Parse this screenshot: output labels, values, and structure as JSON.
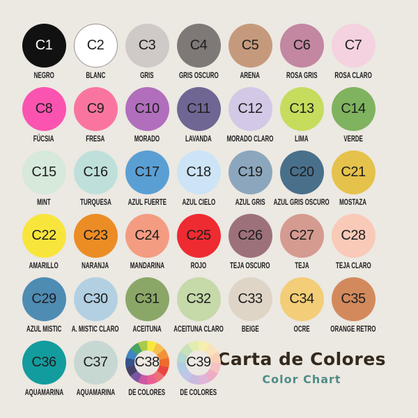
{
  "page": {
    "background": "#ece8e2"
  },
  "title": {
    "main": "Carta de Colores",
    "subtitle": "Color Chart",
    "main_color": "#33291c",
    "subtitle_color": "#4f8d88"
  },
  "chart_data": {
    "type": "table",
    "title": "Carta de Colores",
    "subtitle": "Color Chart",
    "description": "Marker color chart: 39 numbered circular swatches with Spanish color names",
    "default_text_color": "#1e1e1e",
    "columns": [
      "code",
      "name",
      "color"
    ],
    "swatches": [
      {
        "code": "C1",
        "name": "NEGRO",
        "color": "#111111",
        "text_color": "#ffffff"
      },
      {
        "code": "C2",
        "name": "BLANC",
        "color": "#ffffff",
        "border": "#9a938c"
      },
      {
        "code": "C3",
        "name": "GRIS",
        "color": "#cfc9c7"
      },
      {
        "code": "C4",
        "name": "GRIS OSCURO",
        "color": "#7e7877"
      },
      {
        "code": "C5",
        "name": "ARENA",
        "color": "#c59a7c"
      },
      {
        "code": "C6",
        "name": "ROSA GRIS",
        "color": "#c387a1"
      },
      {
        "code": "C7",
        "name": "ROSA CLARO",
        "color": "#f4d2e0"
      },
      {
        "code": "C8",
        "name": "FÚCSIA",
        "color": "#fb54b0"
      },
      {
        "code": "C9",
        "name": "FRESA",
        "color": "#f9759f"
      },
      {
        "code": "C10",
        "name": "MORADO",
        "color": "#b06ebc"
      },
      {
        "code": "C11",
        "name": "LAVANDA",
        "color": "#6f6693"
      },
      {
        "code": "C12",
        "name": "MORADO CLARO",
        "color": "#d3c8e6"
      },
      {
        "code": "C13",
        "name": "LIMA",
        "color": "#c5dc5c"
      },
      {
        "code": "C14",
        "name": "VERDE",
        "color": "#7fb35f"
      },
      {
        "code": "C15",
        "name": "MINT",
        "color": "#d6e9da"
      },
      {
        "code": "C16",
        "name": "TURQUESA",
        "color": "#bfe0da"
      },
      {
        "code": "C17",
        "name": "AZUL FUERTE",
        "color": "#5a9fd4"
      },
      {
        "code": "C18",
        "name": "AZUL CIELO",
        "color": "#cce4f5"
      },
      {
        "code": "C19",
        "name": "AZUL GRIS",
        "color": "#8ca7bd"
      },
      {
        "code": "C20",
        "name": "AZUL GRIS OSCURO",
        "color": "#49708b"
      },
      {
        "code": "C21",
        "name": "MOSTAZA",
        "color": "#e5c24b"
      },
      {
        "code": "C22",
        "name": "AMARILLO",
        "color": "#f8e53c"
      },
      {
        "code": "C23",
        "name": "NARANJA",
        "color": "#ec8c25"
      },
      {
        "code": "C24",
        "name": "MANDARINA",
        "color": "#f49c82"
      },
      {
        "code": "C25",
        "name": "ROJO",
        "color": "#ee2b31"
      },
      {
        "code": "C26",
        "name": "TEJA OSCURO",
        "color": "#9d7179"
      },
      {
        "code": "C27",
        "name": "TEJA",
        "color": "#d59a90"
      },
      {
        "code": "C28",
        "name": "TEJA CLARO",
        "color": "#f9cab8"
      },
      {
        "code": "C29",
        "name": "AZUL MISTIC",
        "color": "#4e8cb4"
      },
      {
        "code": "C30",
        "name": "A. MISTIC CLARO",
        "color": "#b2d0e2"
      },
      {
        "code": "C31",
        "name": "ACEITUNA",
        "color": "#8aa768"
      },
      {
        "code": "C32",
        "name": "ACEITUNA CLARO",
        "color": "#c5d9a9"
      },
      {
        "code": "C33",
        "name": "BEIGE",
        "color": "#ded5c6"
      },
      {
        "code": "C34",
        "name": "OCRE",
        "color": "#f3cd77"
      },
      {
        "code": "C35",
        "name": "ORANGE RETRO",
        "color": "#d28a5d"
      },
      {
        "code": "C36",
        "name": "AQUAMARINA",
        "color": "#129c9e"
      },
      {
        "code": "C37",
        "name": "AQUAMARINA",
        "color": "#c7d8d3"
      },
      {
        "code": "C38",
        "name": "DE COLORES",
        "wheel": [
          "#f7e93c",
          "#f6c050",
          "#f29238",
          "#ee6b2e",
          "#e9443f",
          "#ed6f77",
          "#eb5e93",
          "#cb5aa0",
          "#7b55a1",
          "#454066",
          "#33528a",
          "#3f86c2",
          "#4aa164",
          "#a9ca4b"
        ]
      },
      {
        "code": "C39",
        "name": "DE COLORES",
        "wheel": [
          "#f6efae",
          "#f9e3bd",
          "#f8d2b4",
          "#f5c2c4",
          "#efadc5",
          "#deb6d8",
          "#c9badf",
          "#bfc6e8",
          "#b2cde2",
          "#b4d8d1",
          "#c8e2ba",
          "#e3ecb0"
        ]
      }
    ]
  }
}
